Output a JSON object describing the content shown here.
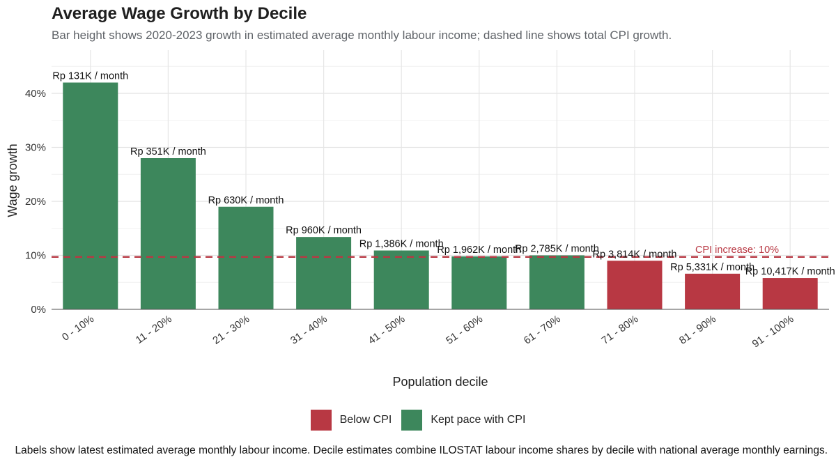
{
  "chart_data": {
    "type": "bar",
    "title": "Average Wage Growth by Decile",
    "subtitle": "Bar height shows 2020-2023 growth in estimated average monthly labour income; dashed line shows total CPI growth.",
    "xlabel": "Population decile",
    "ylabel": "Wage growth",
    "ylim": [
      0,
      0.42
    ],
    "yticks": [
      0,
      0.1,
      0.2,
      0.3,
      0.4
    ],
    "ytick_labels": [
      "0%",
      "10%",
      "20%",
      "30%",
      "40%"
    ],
    "grid": true,
    "categories": [
      "0 - 10%",
      "11 - 20%",
      "21 - 30%",
      "31 - 40%",
      "41 - 50%",
      "51 - 60%",
      "61 - 70%",
      "71 - 80%",
      "81 - 90%",
      "91 - 100%"
    ],
    "values": [
      0.42,
      0.28,
      0.19,
      0.134,
      0.109,
      0.098,
      0.1,
      0.09,
      0.066,
      0.058
    ],
    "bar_labels": [
      "Rp 131K / month",
      "Rp 351K / month",
      "Rp 630K / month",
      "Rp 960K / month",
      "Rp 1,386K / month",
      "Rp 1,962K / month",
      "Rp 2,785K / month",
      "Rp 3,814K / month",
      "Rp 5,331K / month",
      "Rp 10,417K / month"
    ],
    "groups": [
      "Kept pace with CPI",
      "Kept pace with CPI",
      "Kept pace with CPI",
      "Kept pace with CPI",
      "Kept pace with CPI",
      "Kept pace with CPI",
      "Kept pace with CPI",
      "Below CPI",
      "Below CPI",
      "Below CPI"
    ],
    "reference_line": {
      "value": 0.097,
      "label": "CPI increase: 10%",
      "style": "dashed",
      "color": "#b83843"
    },
    "legend": {
      "placement": "bottom",
      "entries": [
        {
          "name": "Below CPI",
          "color": "#b83843"
        },
        {
          "name": "Kept pace with CPI",
          "color": "#3d875c"
        }
      ]
    },
    "caption": "Labels show latest estimated average monthly labour income. Decile estimates combine ILOSTAT labour income shares by decile with national average monthly earnings."
  }
}
